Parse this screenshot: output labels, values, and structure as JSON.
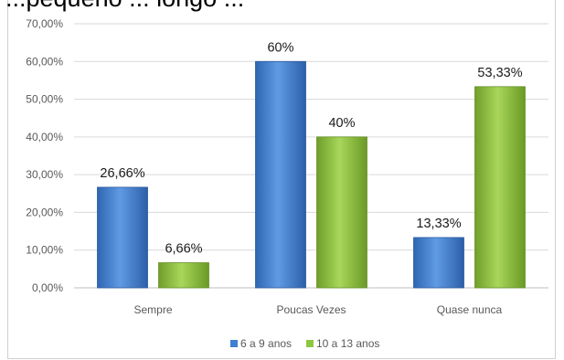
{
  "title_fragment": "...pequeno ... longo ...",
  "chart_data": {
    "type": "bar",
    "categories": [
      "Sempre",
      "Poucas Vezes",
      "Quase nunca"
    ],
    "series": [
      {
        "name": "6 a 9 anos",
        "values": [
          26.66,
          60,
          13.33
        ],
        "labels": [
          "26,66%",
          "60%",
          "13,33%"
        ],
        "color": "#3f7fd1"
      },
      {
        "name": "10 a 13 anos",
        "values": [
          6.66,
          40,
          53.33
        ],
        "labels": [
          "6,66%",
          "40%",
          "53,33%"
        ],
        "color": "#8fc63f"
      }
    ],
    "yticks": [
      "0,00%",
      "10,00%",
      "20,00%",
      "30,00%",
      "40,00%",
      "50,00%",
      "60,00%",
      "70,00%"
    ],
    "ylim": [
      0,
      70
    ],
    "grid": true,
    "legend": "bottom"
  }
}
